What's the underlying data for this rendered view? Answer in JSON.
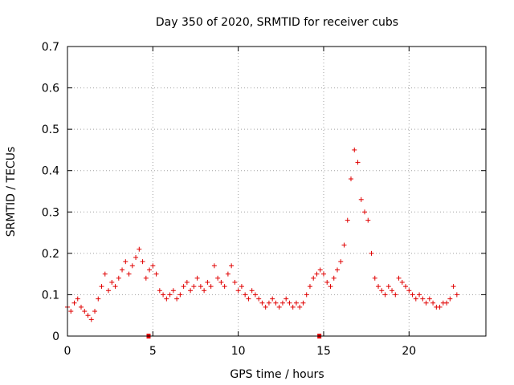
{
  "chart_data": {
    "type": "scatter",
    "title": "Day 350 of 2020, SRMTID for receiver cubs",
    "xlabel": "GPS time / hours",
    "ylabel": "SRMTID / TECUs",
    "xlim": [
      0,
      24.5
    ],
    "ylim": [
      0,
      0.7
    ],
    "x_ticks": [
      0,
      5,
      10,
      15,
      20
    ],
    "x_tick_labels": [
      "0",
      "5",
      "10",
      "15",
      "20"
    ],
    "y_ticks": [
      0,
      0.1,
      0.2,
      0.3,
      0.4,
      0.5,
      0.6,
      0.7
    ],
    "y_tick_labels": [
      "0",
      "0.1",
      "0.2",
      "0.3",
      "0.4",
      "0.5",
      "0.6",
      "0.7"
    ],
    "grid": true,
    "marker": "plus",
    "color": "#e00000",
    "baseline_markers_x": [
      4.75,
      14.75
    ],
    "series": [
      {
        "name": "SRMTID",
        "x": [
          0.0,
          0.2,
          0.4,
          0.6,
          0.8,
          1.0,
          1.2,
          1.4,
          1.6,
          1.8,
          2.0,
          2.2,
          2.4,
          2.6,
          2.8,
          3.0,
          3.2,
          3.4,
          3.6,
          3.8,
          4.0,
          4.2,
          4.4,
          4.6,
          4.8,
          5.0,
          5.2,
          5.4,
          5.6,
          5.8,
          6.0,
          6.2,
          6.4,
          6.6,
          6.8,
          7.0,
          7.2,
          7.4,
          7.6,
          7.8,
          8.0,
          8.2,
          8.4,
          8.6,
          8.8,
          9.0,
          9.2,
          9.4,
          9.6,
          9.8,
          10.0,
          10.2,
          10.4,
          10.6,
          10.8,
          11.0,
          11.2,
          11.4,
          11.6,
          11.8,
          12.0,
          12.2,
          12.4,
          12.6,
          12.8,
          13.0,
          13.2,
          13.4,
          13.6,
          13.8,
          14.0,
          14.2,
          14.4,
          14.6,
          14.8,
          15.0,
          15.2,
          15.4,
          15.6,
          15.8,
          16.0,
          16.2,
          16.4,
          16.6,
          16.8,
          17.0,
          17.2,
          17.4,
          17.6,
          17.8,
          18.0,
          18.2,
          18.4,
          18.6,
          18.8,
          19.0,
          19.2,
          19.4,
          19.6,
          19.8,
          20.0,
          20.2,
          20.4,
          20.6,
          20.8,
          21.0,
          21.2,
          21.4,
          21.6,
          21.8,
          22.0,
          22.2,
          22.4,
          22.6,
          22.8
        ],
        "y": [
          0.07,
          0.06,
          0.08,
          0.09,
          0.07,
          0.06,
          0.05,
          0.04,
          0.06,
          0.09,
          0.12,
          0.15,
          0.11,
          0.13,
          0.12,
          0.14,
          0.16,
          0.18,
          0.15,
          0.17,
          0.19,
          0.21,
          0.18,
          0.14,
          0.16,
          0.17,
          0.15,
          0.11,
          0.1,
          0.09,
          0.1,
          0.11,
          0.09,
          0.1,
          0.12,
          0.13,
          0.11,
          0.12,
          0.14,
          0.12,
          0.11,
          0.13,
          0.12,
          0.17,
          0.14,
          0.13,
          0.12,
          0.15,
          0.17,
          0.13,
          0.11,
          0.12,
          0.1,
          0.09,
          0.11,
          0.1,
          0.09,
          0.08,
          0.07,
          0.08,
          0.09,
          0.08,
          0.07,
          0.08,
          0.09,
          0.08,
          0.07,
          0.08,
          0.07,
          0.08,
          0.1,
          0.12,
          0.14,
          0.15,
          0.16,
          0.15,
          0.13,
          0.12,
          0.14,
          0.16,
          0.18,
          0.22,
          0.28,
          0.38,
          0.45,
          0.42,
          0.33,
          0.3,
          0.28,
          0.2,
          0.14,
          0.12,
          0.11,
          0.1,
          0.12,
          0.11,
          0.1,
          0.14,
          0.13,
          0.12,
          0.11,
          0.1,
          0.09,
          0.1,
          0.09,
          0.08,
          0.09,
          0.08,
          0.07,
          0.07,
          0.08,
          0.08,
          0.09,
          0.12,
          0.1
        ]
      }
    ]
  }
}
